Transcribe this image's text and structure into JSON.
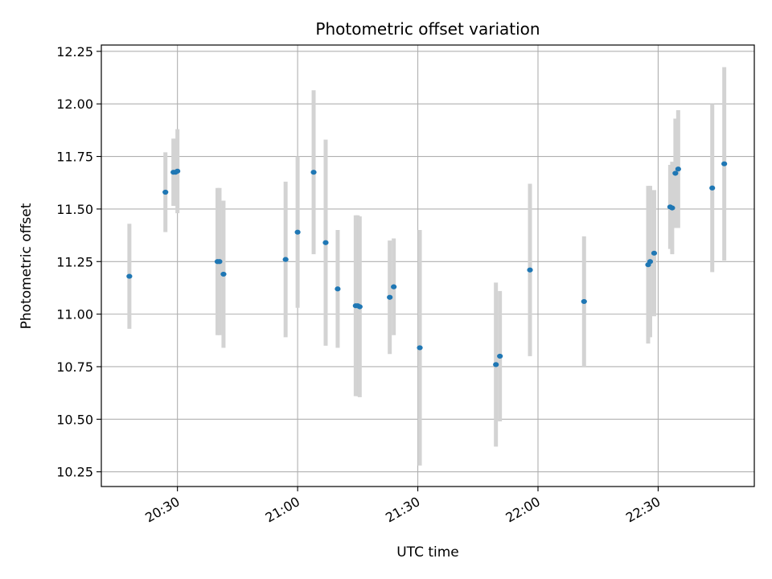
{
  "chart_data": {
    "type": "scatter",
    "title": "Photometric offset variation",
    "xlabel": "UTC time",
    "ylabel": "Photometric offset",
    "x_tick_labels": [
      "20:30",
      "21:00",
      "21:30",
      "22:00",
      "22:30"
    ],
    "y_tick_labels": [
      "10.25",
      "10.50",
      "10.75",
      "11.00",
      "11.25",
      "11.50",
      "11.75",
      "12.00",
      "12.25"
    ],
    "xlim": [
      "20:11",
      "22:54"
    ],
    "ylim": [
      10.18,
      12.28
    ],
    "grid": true,
    "colors": {
      "point": "#1f77b4",
      "errorbar": "#d3d3d3",
      "grid": "#b0b0b0",
      "axes": "#000000"
    },
    "points": [
      {
        "x": "20:18",
        "y": 11.18,
        "yerr": 0.25
      },
      {
        "x": "20:27",
        "y": 11.58,
        "yerr": 0.19
      },
      {
        "x": "20:29",
        "y": 11.675,
        "yerr": 0.16
      },
      {
        "x": "20:29.5",
        "y": 11.675,
        "yerr": 0.16
      },
      {
        "x": "20:30",
        "y": 11.68,
        "yerr": 0.2
      },
      {
        "x": "20:40",
        "y": 11.25,
        "yerr": 0.35
      },
      {
        "x": "20:40.5",
        "y": 11.25,
        "yerr": 0.35
      },
      {
        "x": "20:41.5",
        "y": 11.19,
        "yerr": 0.35
      },
      {
        "x": "20:57",
        "y": 11.26,
        "yerr": 0.37
      },
      {
        "x": "21:00",
        "y": 11.39,
        "yerr": 0.36
      },
      {
        "x": "21:04",
        "y": 11.675,
        "yerr": 0.39
      },
      {
        "x": "21:07",
        "y": 11.34,
        "yerr": 0.49
      },
      {
        "x": "21:10",
        "y": 11.12,
        "yerr": 0.28
      },
      {
        "x": "21:14.5",
        "y": 11.04,
        "yerr": 0.43
      },
      {
        "x": "21:15",
        "y": 11.04,
        "yerr": 0.43
      },
      {
        "x": "21:15.5",
        "y": 11.035,
        "yerr": 0.43
      },
      {
        "x": "21:23",
        "y": 11.08,
        "yerr": 0.27
      },
      {
        "x": "21:24",
        "y": 11.13,
        "yerr": 0.23
      },
      {
        "x": "21:30.5",
        "y": 10.84,
        "yerr": 0.56
      },
      {
        "x": "21:49.5",
        "y": 10.76,
        "yerr": 0.39
      },
      {
        "x": "21:50.5",
        "y": 10.8,
        "yerr": 0.31
      },
      {
        "x": "21:58",
        "y": 11.21,
        "yerr": 0.41
      },
      {
        "x": "22:11.5",
        "y": 11.06,
        "yerr": 0.31
      },
      {
        "x": "22:27.5",
        "y": 11.235,
        "yerr": 0.375
      },
      {
        "x": "22:28",
        "y": 11.25,
        "yerr": 0.36
      },
      {
        "x": "22:29",
        "y": 11.29,
        "yerr": 0.3
      },
      {
        "x": "22:33",
        "y": 11.51,
        "yerr": 0.2
      },
      {
        "x": "22:33.5",
        "y": 11.505,
        "yerr": 0.22
      },
      {
        "x": "22:34.3",
        "y": 11.67,
        "yerr": 0.26
      },
      {
        "x": "22:35",
        "y": 11.69,
        "yerr": 0.28
      },
      {
        "x": "22:43.5",
        "y": 11.6,
        "yerr": 0.4
      },
      {
        "x": "22:46.5",
        "y": 11.715,
        "yerr": 0.46
      }
    ]
  }
}
